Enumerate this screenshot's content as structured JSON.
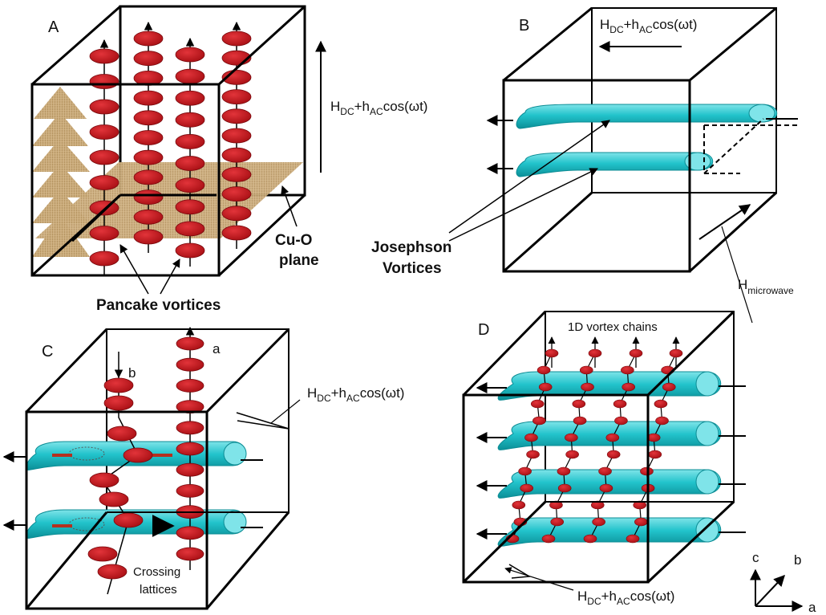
{
  "panels": {
    "A": {
      "letter": "A",
      "field_main": "H",
      "field_sub1": "DC",
      "field_mid": "+h",
      "field_sub2": "AC",
      "field_tail": "cos(ωt)",
      "plane_label_1": "Cu-O",
      "plane_label_2": "plane",
      "pancake_label": "Pancake vortices"
    },
    "B": {
      "letter": "B",
      "field_main": "H",
      "field_sub1": "DC",
      "field_mid": "+h",
      "field_sub2": "AC",
      "field_tail": "cos(ωt)",
      "jv_label_1": "Josephson",
      "jv_label_2": "Vortices",
      "mw_main": "H",
      "mw_sub": "microwave"
    },
    "C": {
      "letter": "C",
      "field_main": "H",
      "field_sub1": "DC",
      "field_mid": "+h",
      "field_sub2": "AC",
      "field_tail": "cos(ωt)",
      "stack_a": "a",
      "stack_b": "b",
      "crossing_1": "Crossing",
      "crossing_2": "lattices"
    },
    "D": {
      "letter": "D",
      "chains_label": "1D vortex chains",
      "field_main": "H",
      "field_sub1": "DC",
      "field_mid": "+h",
      "field_sub2": "AC",
      "field_tail": "cos(ωt)",
      "axis_c": "c",
      "axis_b": "b",
      "axis_a": "a"
    }
  },
  "colors": {
    "vortex_fill": "#c4161c",
    "cylinder_fill": "#1fbcc4",
    "cylinder_light": "#7fe4e9",
    "plane_fill": "#c8a976",
    "edge": "#000000"
  }
}
